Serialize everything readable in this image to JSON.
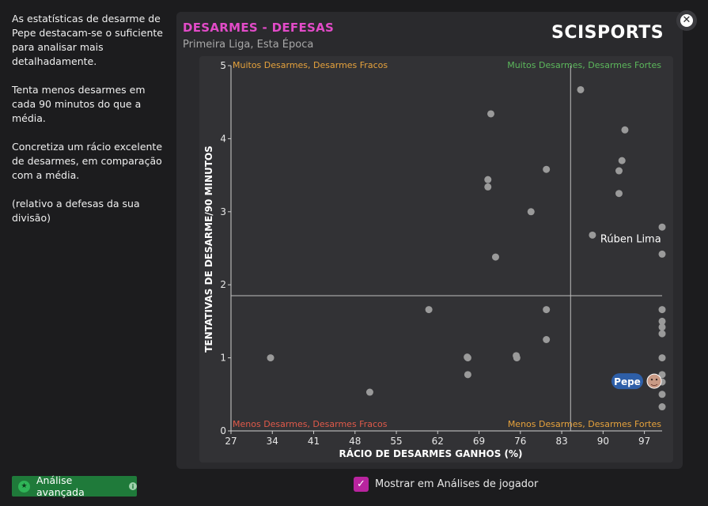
{
  "sidebar": {
    "para1": "As estatísticas de desarme de Pepe destacam-se o suficiente para analisar mais detalhadamente.",
    "para2": "Tenta menos desarmes em cada 90 minutos do que a média.",
    "para3": "Concretiza um rácio excelente de desarmes, em comparação com a média.",
    "para4": "(relativo a defesas da sua divisão)"
  },
  "advanced_button": {
    "label": "Análise avançada",
    "icon": "star-icon"
  },
  "header": {
    "title": "DESARMES - DEFESAS",
    "subtitle": "Primeira Liga, Esta Época",
    "brand": "SCISPORTS"
  },
  "show_in_player_analysis": {
    "label": "Mostrar em Análises de jogador",
    "checked": true
  },
  "colors": {
    "accent": "#e24bc8",
    "checkbox": "#b9249f",
    "button": "#1f7a3a",
    "quad_weak": "#e6a23c",
    "quad_strong": "#5cb85c",
    "quad_low_weak": "#e05a4a",
    "highlight": "#2e5fa8"
  },
  "chart_data": {
    "type": "scatter",
    "xlabel": "RÁCIO DE DESARMES GANHOS (%)",
    "ylabel": "TENTATIVAS DE DESARME/90 MINUTOS",
    "xlim": [
      27,
      100
    ],
    "ylim": [
      0,
      5
    ],
    "x_ticks": [
      "27",
      "34",
      "41",
      "48",
      "55",
      "62",
      "69",
      "76",
      "83",
      "90",
      "97"
    ],
    "y_ticks": [
      "0",
      "1",
      "2",
      "3",
      "4",
      "5"
    ],
    "average_x": 84.5,
    "average_y": 1.85,
    "quadrants": {
      "top_left": "Muitos Desarmes, Desarmes Fracos",
      "top_right": "Muitos Desarmes, Desarmes Fortes",
      "bottom_left": "Menos Desarmes, Desarmes Fracos",
      "bottom_right": "Menos Desarmes, Desarmes Fortes"
    },
    "points": [
      {
        "x": 33.7,
        "y": 1.0
      },
      {
        "x": 50.5,
        "y": 0.53
      },
      {
        "x": 60.5,
        "y": 1.66
      },
      {
        "x": 67.1,
        "y": 1.0
      },
      {
        "x": 67.1,
        "y": 0.77
      },
      {
        "x": 67.0,
        "y": 1.01
      },
      {
        "x": 70.5,
        "y": 3.44
      },
      {
        "x": 70.5,
        "y": 3.34
      },
      {
        "x": 71.0,
        "y": 4.34
      },
      {
        "x": 71.8,
        "y": 2.38
      },
      {
        "x": 75.3,
        "y": 1.03
      },
      {
        "x": 75.4,
        "y": 1.0
      },
      {
        "x": 77.8,
        "y": 3.0
      },
      {
        "x": 80.4,
        "y": 3.58
      },
      {
        "x": 80.4,
        "y": 1.66
      },
      {
        "x": 80.4,
        "y": 1.25
      },
      {
        "x": 86.2,
        "y": 4.67
      },
      {
        "x": 88.2,
        "y": 2.68
      },
      {
        "x": 92.7,
        "y": 3.25
      },
      {
        "x": 92.7,
        "y": 3.56
      },
      {
        "x": 93.2,
        "y": 3.7
      },
      {
        "x": 93.7,
        "y": 4.12
      },
      {
        "x": 100,
        "y": 2.79
      },
      {
        "x": 100,
        "y": 2.42
      },
      {
        "x": 100,
        "y": 1.66
      },
      {
        "x": 100,
        "y": 1.5
      },
      {
        "x": 100,
        "y": 1.42
      },
      {
        "x": 100,
        "y": 1.33
      },
      {
        "x": 100,
        "y": 1.0
      },
      {
        "x": 100,
        "y": 0.77
      },
      {
        "x": 100,
        "y": 0.67
      },
      {
        "x": 100,
        "y": 0.5
      },
      {
        "x": 100,
        "y": 0.33
      }
    ],
    "labelled_point": {
      "name": "Rúben Lima",
      "x": 88.2,
      "y": 2.68
    },
    "highlighted_player": {
      "name": "Pepe",
      "x": 100,
      "y": 0.67
    }
  }
}
